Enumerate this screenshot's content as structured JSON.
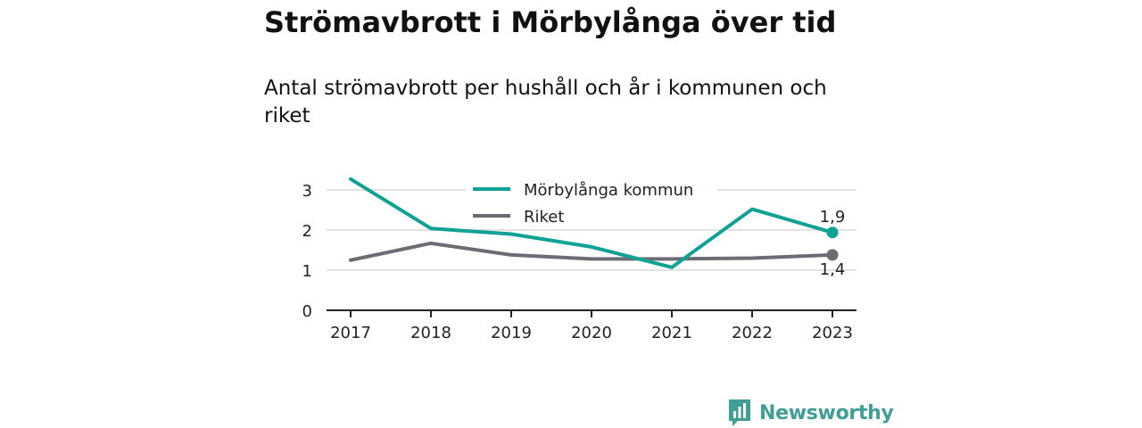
{
  "header": {
    "title": "Strömavbrott i Mörbylånga över tid",
    "subtitle": "Antal strömavbrott per hushåll och år i kommunen och riket"
  },
  "brand": {
    "name": "Newsworthy",
    "icon": "newsworthy-logo-icon",
    "color": "#3f9e95"
  },
  "chart_data": {
    "type": "line",
    "x": [
      "2017",
      "2018",
      "2019",
      "2020",
      "2021",
      "2022",
      "2023"
    ],
    "ylim": [
      0,
      3.3
    ],
    "yticks": [
      "0",
      "1",
      "2",
      "3"
    ],
    "grid": true,
    "legend_position": "top",
    "series": [
      {
        "name": "Mörbylånga kommun",
        "color": "#10a195",
        "values": [
          3.27,
          2.04,
          1.9,
          1.58,
          1.07,
          2.52,
          1.94
        ],
        "end_label": "1,9"
      },
      {
        "name": "Riket",
        "color": "#6d6c74",
        "values": [
          1.25,
          1.67,
          1.38,
          1.28,
          1.28,
          1.3,
          1.38
        ],
        "end_label": "1,4"
      }
    ]
  }
}
